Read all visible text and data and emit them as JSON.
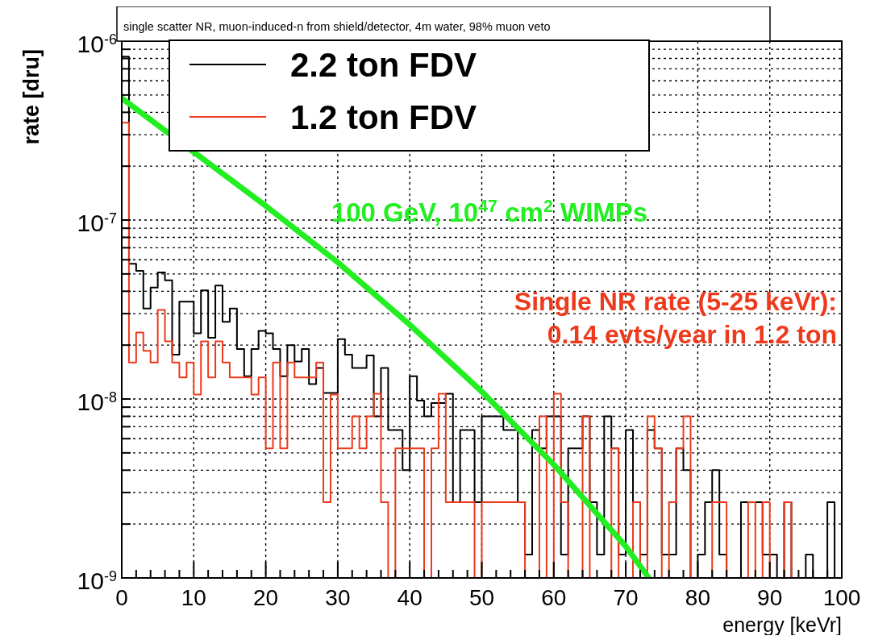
{
  "chart_data": {
    "type": "histogram",
    "title": "single scatter NR, muon-induced-n from shield/detector, 4m water, 98% muon veto",
    "xlabel": "energy [keVr]",
    "ylabel": "rate [dru]",
    "annotations": [
      "Single NR rate (5-25 keVr):",
      "0.14 evts/year in 1.2 ton"
    ],
    "log": "y",
    "grid": true,
    "legend": "top left",
    "xlim": [
      0,
      100
    ],
    "ylim": [
      1e-09,
      1e-06
    ],
    "xticks": [
      0,
      {
        "value": 2,
        "label": null
      },
      {
        "value": 4,
        "label": null
      },
      {
        "value": 6,
        "label": null
      },
      {
        "value": 8,
        "label": null
      },
      10,
      {
        "value": 12,
        "label": null
      },
      {
        "value": 14,
        "label": null
      },
      {
        "value": 16,
        "label": null
      },
      {
        "value": 18,
        "label": null
      },
      20,
      {
        "value": 22,
        "label": null
      },
      {
        "value": 24,
        "label": null
      },
      {
        "value": 26,
        "label": null
      },
      {
        "value": 28,
        "label": null
      },
      30,
      {
        "value": 32,
        "label": null
      },
      {
        "value": 34,
        "label": null
      },
      {
        "value": 36,
        "label": null
      },
      {
        "value": 38,
        "label": null
      },
      40,
      {
        "value": 42,
        "label": null
      },
      {
        "value": 44,
        "label": null
      },
      {
        "value": 46,
        "label": null
      },
      {
        "value": 48,
        "label": null
      },
      50,
      {
        "value": 52,
        "label": null
      },
      {
        "value": 54,
        "label": null
      },
      {
        "value": 56,
        "label": null
      },
      {
        "value": 58,
        "label": null
      },
      60,
      {
        "value": 62,
        "label": null
      },
      {
        "value": 64,
        "label": null
      },
      {
        "value": 66,
        "label": null
      },
      {
        "value": 68,
        "label": null
      },
      70,
      {
        "value": 72,
        "label": null
      },
      {
        "value": 74,
        "label": null
      },
      {
        "value": 76,
        "label": null
      },
      {
        "value": 78,
        "label": null
      },
      80,
      {
        "value": 82,
        "label": null
      },
      {
        "value": 84,
        "label": null
      },
      {
        "value": 86,
        "label": null
      },
      {
        "value": 88,
        "label": null
      },
      90,
      {
        "value": 92,
        "label": null
      },
      {
        "value": 94,
        "label": null
      },
      {
        "value": 96,
        "label": null
      },
      {
        "value": 98,
        "label": null
      },
      100
    ],
    "yticks": [
      {
        "value": 1e-09,
        "label": "10$^{-9}$"
      },
      {
        "value": 2e-09,
        "label": null
      },
      {
        "value": 3e-09,
        "label": null
      },
      {
        "value": 4e-09,
        "label": null
      },
      {
        "value": 5e-09,
        "label": null
      },
      {
        "value": 6e-09,
        "label": null
      },
      {
        "value": 7e-09,
        "label": null
      },
      {
        "value": 8e-09,
        "label": null
      },
      {
        "value": 9e-09,
        "label": null
      },
      {
        "value": 1e-08,
        "label": "10$^{-8}$"
      },
      {
        "value": 2e-08,
        "label": null
      },
      {
        "value": 3e-08,
        "label": null
      },
      {
        "value": 4e-08,
        "label": null
      },
      {
        "value": 5e-08,
        "label": null
      },
      {
        "value": 6e-08,
        "label": null
      },
      {
        "value": 7e-08,
        "label": null
      },
      {
        "value": 8e-08,
        "label": null
      },
      {
        "value": 9e-08,
        "label": null
      },
      {
        "value": 1e-07,
        "label": "10$^{-7}$"
      },
      {
        "value": 2e-07,
        "label": null
      },
      {
        "value": 3e-07,
        "label": null
      },
      {
        "value": 4e-07,
        "label": null
      },
      {
        "value": 5e-07,
        "label": null
      },
      {
        "value": 6e-07,
        "label": null
      },
      {
        "value": 7e-07,
        "label": null
      },
      {
        "value": 8e-07,
        "label": null
      },
      {
        "value": 9e-07,
        "label": null
      },
      {
        "value": 1e-06,
        "label": "10$^{-6}$"
      }
    ],
    "bins": [
      0,
      1,
      2,
      3,
      4,
      5,
      6,
      7,
      8,
      9,
      10,
      11,
      12,
      13,
      14,
      15,
      16,
      17,
      18,
      19,
      20,
      21,
      22,
      23,
      24,
      25,
      26,
      27,
      28,
      29,
      30,
      31,
      32,
      33,
      34,
      35,
      36,
      37,
      38,
      39,
      40,
      41,
      42,
      43,
      44,
      45,
      46,
      47,
      48,
      49,
      50,
      51,
      52,
      53,
      54,
      55,
      56,
      57,
      58,
      59,
      60,
      61,
      62,
      63,
      64,
      65,
      66,
      67,
      68,
      69,
      70,
      71,
      72,
      73,
      74,
      75,
      76,
      77,
      78,
      79,
      80,
      81,
      82,
      83,
      84,
      85,
      86,
      87,
      88,
      89,
      90,
      91,
      92,
      93,
      94,
      95,
      96,
      97,
      98,
      99,
      100
    ],
    "series": [
      {
        "name": "2.2 ton FDV",
        "color": "#000000",
        "values": [
          8.2e-07,
          5.7e-08,
          5.2e-08,
          3.2e-08,
          4.2e-08,
          5.1e-08,
          4.6e-08,
          1.77e-08,
          3.5e-08,
          3.5e-08,
          2.33e-08,
          4.05e-08,
          2.2e-08,
          4.3e-08,
          2.7e-08,
          3.2e-08,
          1.9e-08,
          1.34e-08,
          1.9e-08,
          2.4e-08,
          2.33e-08,
          1.9e-08,
          1.34e-08,
          2e-08,
          1.62e-08,
          1.9e-08,
          1.21e-08,
          1.49e-08,
          1.08e-08,
          1.08e-08,
          2.16e-08,
          1.77e-08,
          1.49e-08,
          1.49e-08,
          1.75e-08,
          8e-09,
          1.49e-08,
          6.7e-09,
          6.7e-09,
          4e-09,
          1.34e-08,
          9.8e-09,
          8e-09,
          9.5e-09,
          9.5e-09,
          1.07e-08,
          2.65e-09,
          6.7e-09,
          6.7e-09,
          2.65e-09,
          8e-09,
          8e-09,
          8e-09,
          6.7e-09,
          6.7e-09,
          2.65e-09,
          1.35e-09,
          6.7e-09,
          5.3e-09,
          8e-09,
          8e-09,
          1.35e-09,
          5.3e-09,
          5.3e-09,
          8e-09,
          2.65e-09,
          1.35e-09,
          8e-09,
          5.3e-09,
          1.35e-09,
          6.7e-09,
          2.65e-09,
          1.35e-09,
          6.7e-09,
          5.3e-09,
          1.35e-09,
          1.35e-09,
          5.3e-09,
          4e-09,
          1e-09,
          1.35e-09,
          2.65e-09,
          4e-09,
          1.35e-09,
          1e-09,
          1e-09,
          2.65e-09,
          2.65e-09,
          2.65e-09,
          1.35e-09,
          1.35e-09,
          1e-09,
          2.65e-09,
          1e-09,
          1e-09,
          1.35e-09,
          1e-09,
          1e-09,
          2.65e-09,
          1e-09
        ]
      },
      {
        "name": "1.2 ton FDV",
        "color": "#ee3a1c",
        "values": [
          3.5e-07,
          1.6e-08,
          2.35e-08,
          1.86e-08,
          1.6e-08,
          3.15e-08,
          2.1e-08,
          1.6e-08,
          1.32e-08,
          1.6e-08,
          1.06e-08,
          2.1e-08,
          1.32e-08,
          2.1e-08,
          1.6e-08,
          1.32e-08,
          1.32e-08,
          1.32e-08,
          1.06e-08,
          1.32e-08,
          5.3e-09,
          1.6e-08,
          5.3e-09,
          1.6e-08,
          1.32e-08,
          1.32e-08,
          1.32e-08,
          1.6e-08,
          2.65e-09,
          1.06e-08,
          5.3e-09,
          5.3e-09,
          8e-09,
          5.3e-09,
          8e-09,
          1.07e-08,
          2.65e-09,
          1e-09,
          5.3e-09,
          5.3e-09,
          5.3e-09,
          5.3e-09,
          1e-09,
          5.3e-09,
          1.07e-08,
          2.65e-09,
          2.65e-09,
          2.65e-09,
          2.65e-09,
          1e-09,
          2.65e-09,
          2.65e-09,
          2.65e-09,
          2.65e-09,
          2.65e-09,
          2.65e-09,
          1e-09,
          1e-09,
          8e-09,
          1e-09,
          1.07e-08,
          2.65e-09,
          1e-09,
          1e-09,
          8e-09,
          1e-09,
          1e-09,
          1e-09,
          5.3e-09,
          1e-09,
          1e-09,
          2.65e-09,
          1e-09,
          8e-09,
          5.3e-09,
          1e-09,
          2.65e-09,
          5.3e-09,
          8e-09,
          1e-09,
          1e-09,
          1e-09,
          2.65e-09,
          2.65e-09,
          1e-09,
          1e-09,
          1e-09,
          2.65e-09,
          1e-09,
          2.65e-09,
          1e-09,
          1e-09,
          2.65e-09,
          1e-09,
          1e-09,
          1e-09,
          1e-09,
          1e-09,
          1e-09,
          1e-09
        ]
      },
      {
        "type": "line",
        "name": "100 GeV, 10$^{47}$ cm$^{2}$ WIMPs",
        "color": "#22ee22",
        "x": [
          0,
          10,
          20,
          30,
          40,
          50,
          60,
          70,
          73.2
        ],
        "values": [
          4.8e-07,
          2.4e-07,
          1.2e-07,
          5.8e-08,
          2.6e-08,
          1.1e-08,
          4.3e-09,
          1.5e-09,
          1e-09
        ]
      }
    ]
  }
}
